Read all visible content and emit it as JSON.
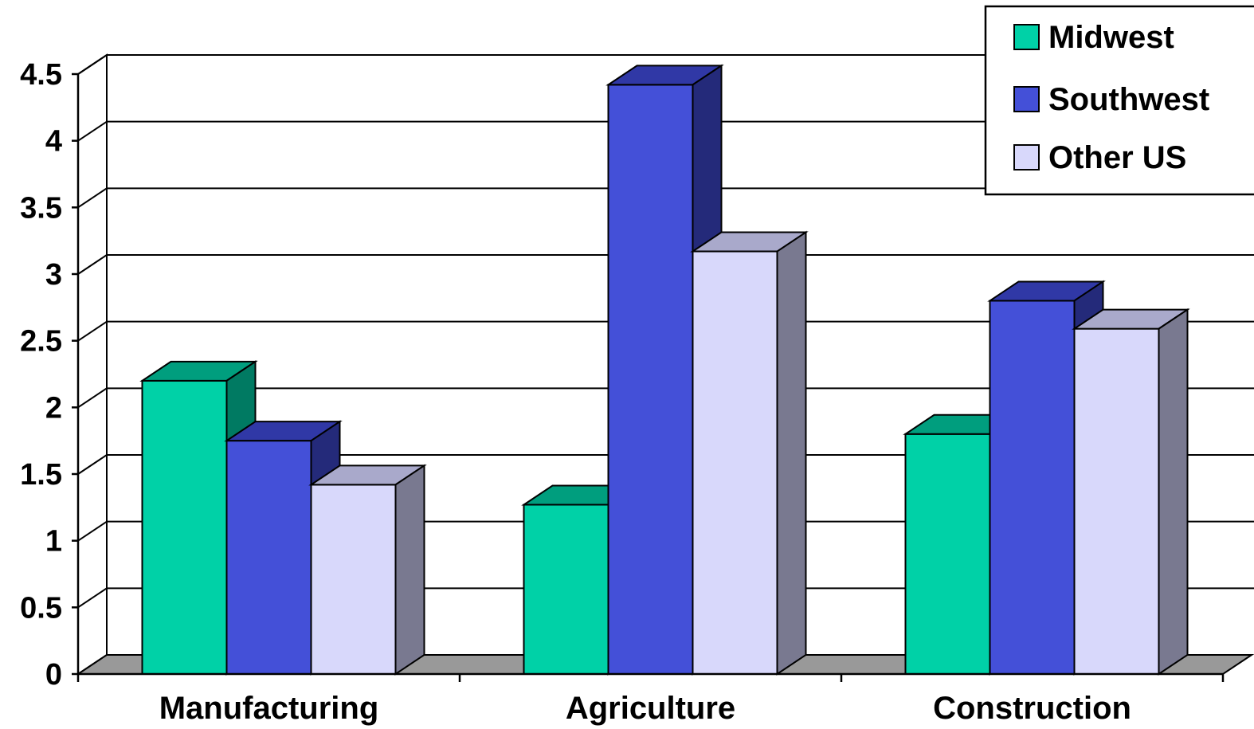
{
  "chart_data": {
    "type": "bar",
    "categories": [
      "Manufacturing",
      "Agriculture",
      "Construction"
    ],
    "series": [
      {
        "name": "Midwest",
        "values": [
          2.2,
          1.27,
          1.8
        ]
      },
      {
        "name": "Southwest",
        "values": [
          1.75,
          4.42,
          2.8
        ]
      },
      {
        "name": "Other US",
        "values": [
          1.42,
          3.17,
          2.59
        ]
      }
    ],
    "yticks": [
      "0",
      "0.5",
      "1",
      "1.5",
      "2",
      "2.5",
      "3",
      "3.5",
      "4",
      "4.5"
    ],
    "ylim": [
      0,
      4.5
    ],
    "grid": true,
    "legend_position": "top-right",
    "style": "3d-clustered-column",
    "colors": {
      "Midwest": {
        "front": "#00D1A7",
        "top": "#009E7E",
        "side": "#007A62"
      },
      "Southwest": {
        "front": "#4450D8",
        "top": "#3038A6",
        "side": "#242A7A"
      },
      "Other US": {
        "front": "#D8D8FB",
        "top": "#A9A9CB",
        "side": "#797990"
      },
      "floor": "#999999",
      "grid": "#000000"
    }
  }
}
